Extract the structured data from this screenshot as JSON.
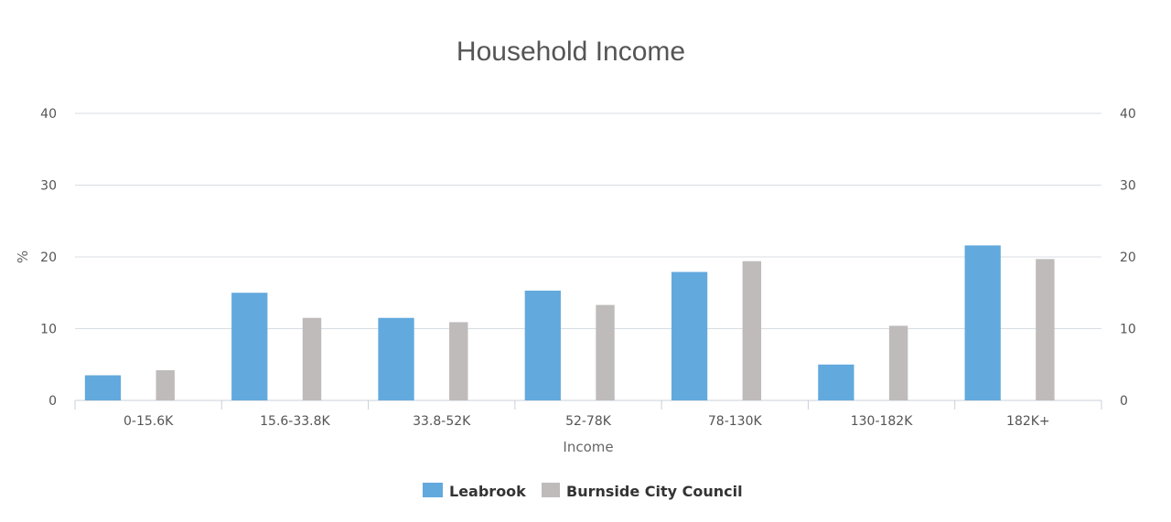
{
  "chart_data": {
    "type": "bar",
    "title": "Household Income",
    "xlabel": "Income",
    "ylabel": "%",
    "ylim": [
      0,
      40
    ],
    "yticks": [
      0,
      10,
      20,
      30,
      40
    ],
    "right_axis": true,
    "grid": true,
    "legend_position": "bottom",
    "categories": [
      "0-15.6K",
      "15.6-33.8K",
      "33.8-52K",
      "52-78K",
      "78-130K",
      "130-182K",
      "182K+"
    ],
    "series": [
      {
        "name": "Leabrook",
        "color": "#62a9dd",
        "values": [
          3.5,
          15.0,
          11.5,
          15.3,
          17.9,
          5.0,
          21.6
        ]
      },
      {
        "name": "Burnside City Council",
        "color": "#bfbbbb",
        "values": [
          4.2,
          11.5,
          10.9,
          13.3,
          19.4,
          10.4,
          19.7
        ]
      }
    ]
  }
}
